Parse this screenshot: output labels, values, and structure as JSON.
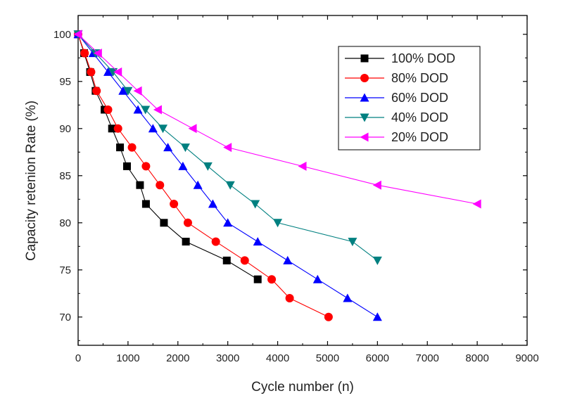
{
  "chart_data": {
    "type": "line",
    "title": "",
    "xlabel": "Cycle number (n)",
    "ylabel": "Capacity retenion Rate (%)",
    "xlim": [
      0,
      9000
    ],
    "ylim": [
      67,
      102
    ],
    "xticks": [
      0,
      1000,
      2000,
      3000,
      4000,
      5000,
      6000,
      7000,
      8000,
      9000
    ],
    "yticks": [
      70,
      75,
      80,
      85,
      90,
      95,
      100
    ],
    "grid": false,
    "legend_position": "top-right",
    "series": [
      {
        "name": "100% DOD",
        "color": "#000000",
        "marker": "square",
        "x": [
          0,
          120,
          240,
          350,
          530,
          680,
          840,
          980,
          1240,
          1360,
          1720,
          2160,
          2980,
          3600
        ],
        "y": [
          100,
          98,
          96,
          94,
          92,
          90,
          88,
          86,
          84,
          82,
          80,
          78,
          76,
          74
        ]
      },
      {
        "name": "80% DOD",
        "color": "#ff0000",
        "marker": "circle",
        "x": [
          0,
          130,
          260,
          370,
          600,
          800,
          1080,
          1360,
          1640,
          1920,
          2200,
          2760,
          3340,
          3880,
          4240,
          5020
        ],
        "y": [
          100,
          98,
          96,
          94,
          92,
          90,
          88,
          86,
          84,
          82,
          80,
          78,
          76,
          74,
          72,
          70
        ]
      },
      {
        "name": "60% DOD",
        "color": "#0000ff",
        "marker": "triangle-up",
        "x": [
          0,
          300,
          600,
          900,
          1200,
          1500,
          1800,
          2100,
          2400,
          2700,
          3000,
          3600,
          4200,
          4800,
          5400,
          6000
        ],
        "y": [
          100,
          98,
          96,
          94,
          92,
          90,
          88,
          86,
          84,
          82,
          80,
          78,
          76,
          74,
          72,
          70
        ]
      },
      {
        "name": "40% DOD",
        "color": "#008080",
        "marker": "triangle-down",
        "x": [
          0,
          350,
          700,
          1000,
          1350,
          1700,
          2150,
          2600,
          3050,
          3550,
          4000,
          5500,
          6000
        ],
        "y": [
          100,
          98,
          96,
          94,
          92,
          90,
          88,
          86,
          84,
          82,
          80,
          78,
          76
        ]
      },
      {
        "name": "20% DOD",
        "color": "#ff00ff",
        "marker": "triangle-left",
        "x": [
          0,
          400,
          800,
          1200,
          1600,
          2300,
          3000,
          4500,
          6000,
          8000
        ],
        "y": [
          100,
          98,
          96,
          94,
          92,
          90,
          88,
          86,
          84,
          82
        ]
      }
    ]
  }
}
